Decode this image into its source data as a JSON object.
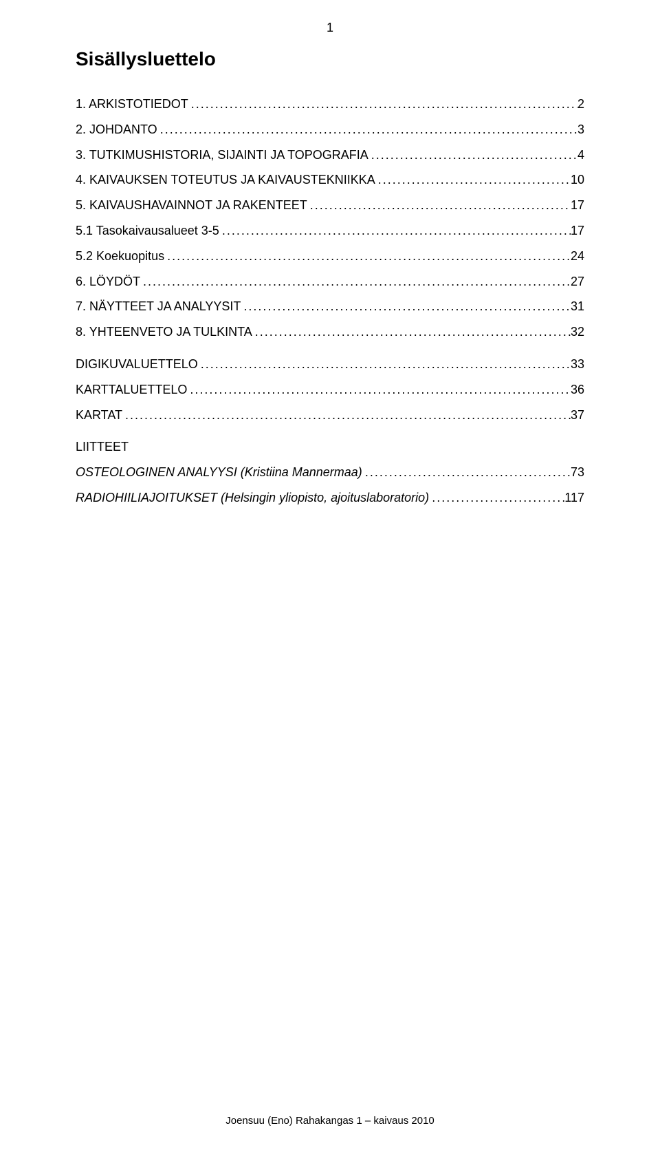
{
  "page_number": "1",
  "title": "Sisällysluettelo",
  "toc_entries": [
    {
      "label": "1. ARKISTOTIEDOT",
      "page": "2",
      "gap": false,
      "italic": false,
      "has_dots": true
    },
    {
      "label": "2. JOHDANTO",
      "page": "3",
      "gap": false,
      "italic": false,
      "has_dots": true
    },
    {
      "label": "3. TUTKIMUSHISTORIA, SIJAINTI JA TOPOGRAFIA",
      "page": "4",
      "gap": false,
      "italic": false,
      "has_dots": true
    },
    {
      "label": "4. KAIVAUKSEN TOTEUTUS JA KAIVAUSTEKNIIKKA",
      "page": "10",
      "gap": false,
      "italic": false,
      "has_dots": true
    },
    {
      "label": "5. KAIVAUSHAVAINNOT JA RAKENTEET",
      "page": "17",
      "gap": false,
      "italic": false,
      "has_dots": true
    },
    {
      "label": "5.1 Tasokaivausalueet 3-5",
      "page": "17",
      "gap": false,
      "italic": false,
      "has_dots": true
    },
    {
      "label": "5.2 Koekuopitus",
      "page": "24",
      "gap": false,
      "italic": false,
      "has_dots": true
    },
    {
      "label": "6. LÖYDÖT",
      "page": "27",
      "gap": false,
      "italic": false,
      "has_dots": true
    },
    {
      "label": "7. NÄYTTEET JA ANALYYSIT",
      "page": "31",
      "gap": false,
      "italic": false,
      "has_dots": true
    },
    {
      "label": "8. YHTEENVETO JA TULKINTA",
      "page": "32",
      "gap": false,
      "italic": false,
      "has_dots": true
    },
    {
      "label": "DIGIKUVALUETTELO",
      "page": "33",
      "gap": true,
      "italic": false,
      "has_dots": true
    },
    {
      "label": "KARTTALUETTELO",
      "page": "36",
      "gap": false,
      "italic": false,
      "has_dots": true
    },
    {
      "label": "KARTAT",
      "page": "37",
      "gap": false,
      "italic": false,
      "has_dots": true
    },
    {
      "label": "LIITTEET",
      "page": "",
      "gap": true,
      "italic": false,
      "has_dots": false
    },
    {
      "label": "OSTEOLOGINEN ANALYYSI (Kristiina Mannermaa)",
      "page": "73",
      "gap": false,
      "italic": true,
      "has_dots": true
    },
    {
      "label": "RADIOHIILIAJOITUKSET (Helsingin yliopisto, ajoituslaboratorio)",
      "page": "117",
      "gap": false,
      "italic": true,
      "has_dots": true
    }
  ],
  "footer": "Joensuu (Eno) Rahakangas 1 – kaivaus 2010",
  "colors": {
    "background": "#ffffff",
    "text": "#000000"
  },
  "typography": {
    "title_fontsize": 28,
    "body_fontsize": 18,
    "footer_fontsize": 15,
    "page_number_fontsize": 18
  }
}
